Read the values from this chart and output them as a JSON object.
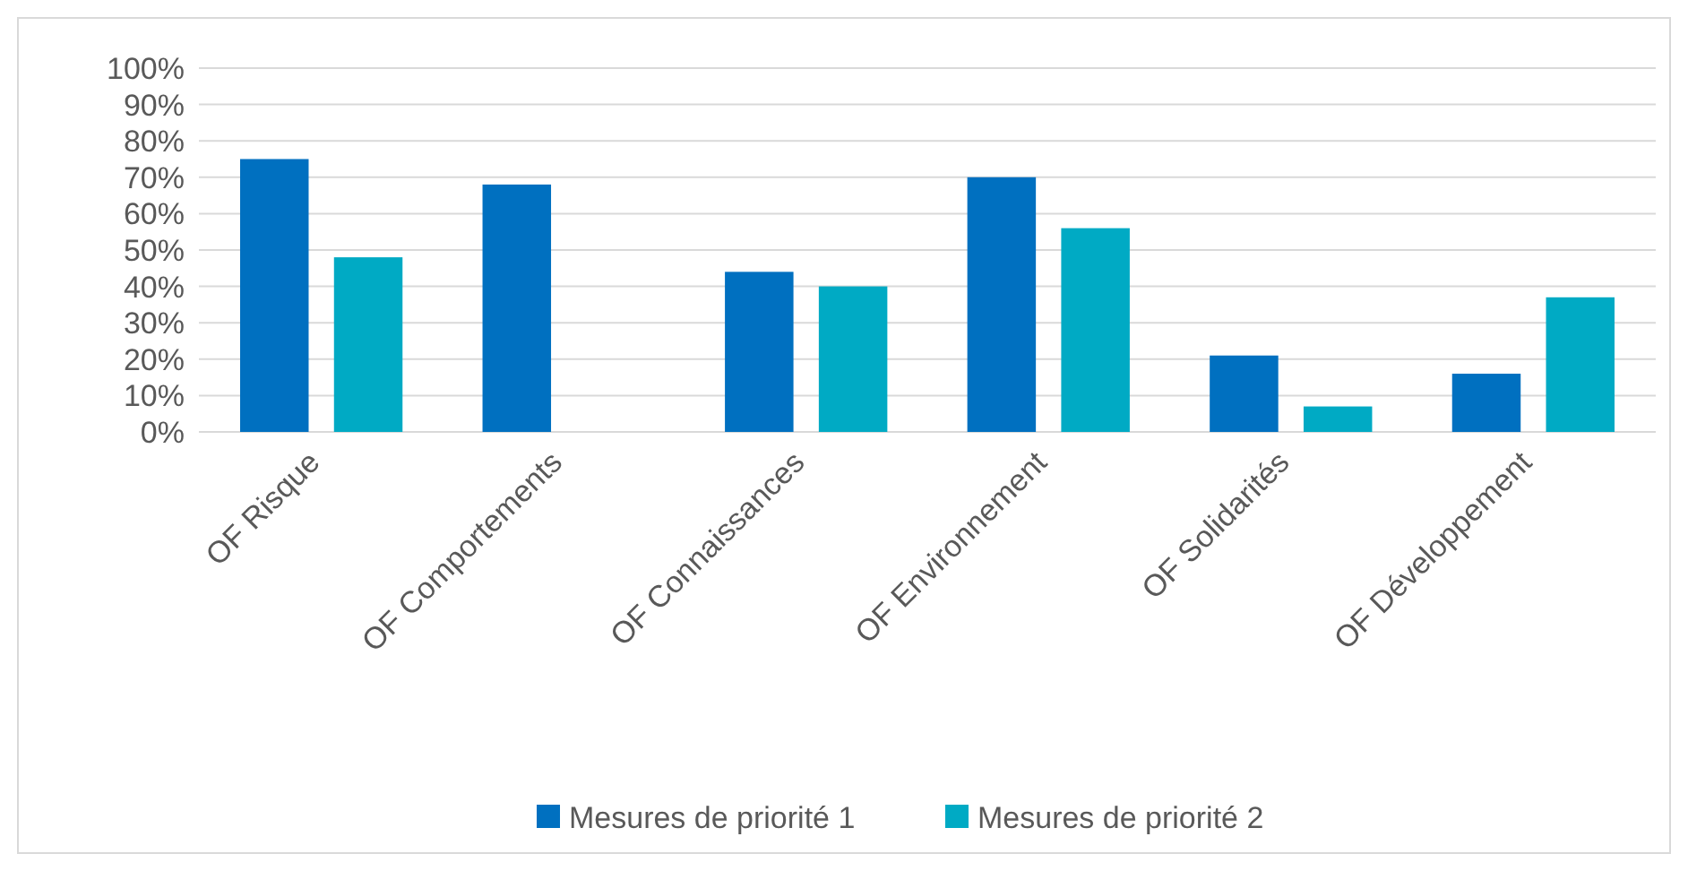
{
  "chart_data": {
    "type": "bar",
    "categories": [
      "OF Risque",
      "OF Comportements",
      "OF Connaissances",
      "OF Environnement",
      "OF Solidarités",
      "OF Développement"
    ],
    "series": [
      {
        "name": "Mesures de priorité 1",
        "color": "#0070c0",
        "values": [
          75,
          68,
          44,
          70,
          21,
          16
        ]
      },
      {
        "name": "Mesures de priorité 2",
        "color": "#00aac4",
        "values": [
          48,
          null,
          40,
          56,
          7,
          37
        ]
      }
    ],
    "ylim": [
      0,
      100
    ],
    "yticks": [
      {
        "value": 0,
        "label": "0%"
      },
      {
        "value": 10,
        "label": "10%"
      },
      {
        "value": 20,
        "label": "20%"
      },
      {
        "value": 30,
        "label": "30%"
      },
      {
        "value": 40,
        "label": "40%"
      },
      {
        "value": 50,
        "label": "50%"
      },
      {
        "value": 60,
        "label": "60%"
      },
      {
        "value": 70,
        "label": "70%"
      },
      {
        "value": 80,
        "label": "80%"
      },
      {
        "value": 90,
        "label": "90%"
      },
      {
        "value": 100,
        "label": "100%"
      }
    ],
    "grid": "y",
    "legend": "bottom"
  }
}
